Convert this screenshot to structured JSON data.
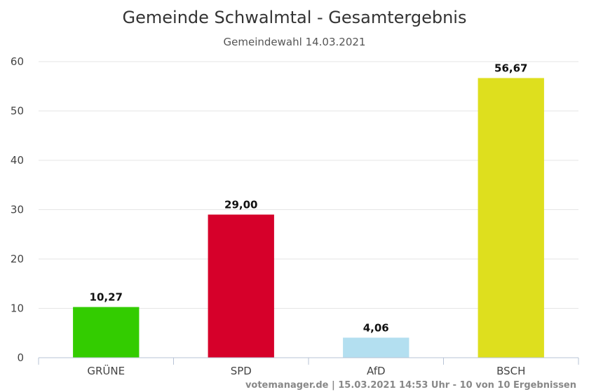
{
  "chart_data": {
    "type": "bar",
    "title": "Gemeinde Schwalmtal - Gesamtergebnis",
    "subtitle": "Gemeindewahl 14.03.2021",
    "categories": [
      "GRÜNE",
      "SPD",
      "AfD",
      "BSCH"
    ],
    "values": [
      10.27,
      29.0,
      4.06,
      56.67
    ],
    "data_labels": [
      "10,27",
      "29,00",
      "4,06",
      "56,67"
    ],
    "colors": [
      "#33cc00",
      "#d6002a",
      "#b3dff0",
      "#dedf1e"
    ],
    "ylim": [
      0,
      60
    ],
    "yticks": [
      "0",
      "10",
      "20",
      "30",
      "40",
      "50",
      "60"
    ],
    "xlabel": "",
    "ylabel": "",
    "grid": true,
    "legend": "none"
  },
  "credits": "votemanager.de | 15.03.2021 14:53 Uhr - 10 von 10 Ergebnissen"
}
